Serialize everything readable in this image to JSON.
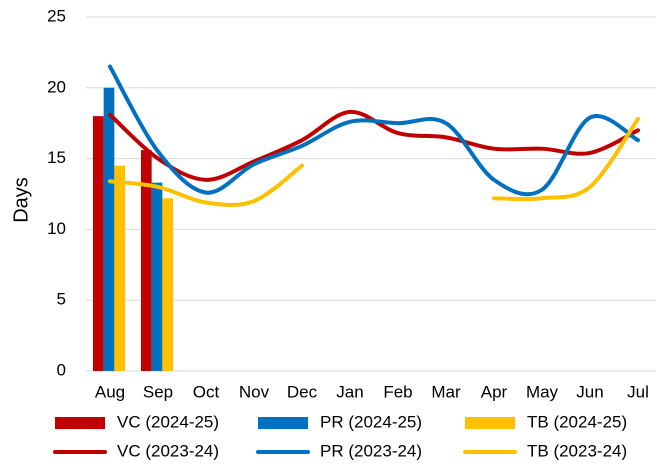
{
  "chart_data": {
    "type": "bar",
    "y_label": "Days",
    "categories": [
      "Aug",
      "Sep",
      "Oct",
      "Nov",
      "Dec",
      "Jan",
      "Feb",
      "Mar",
      "Apr",
      "May",
      "Jun",
      "Jul"
    ],
    "ylim": [
      0,
      25
    ],
    "yticks": [
      0,
      5,
      10,
      15,
      20,
      25
    ],
    "grid": true,
    "legend": "bottom",
    "series": [
      {
        "name": "VC (2024-25)",
        "type": "bar",
        "color": "#c00000",
        "values": [
          18,
          15.6,
          null,
          null,
          null,
          null,
          null,
          null,
          null,
          null,
          null,
          null
        ]
      },
      {
        "name": "PR (2024-25)",
        "type": "bar",
        "color": "#0070c0",
        "values": [
          20,
          13.3,
          null,
          null,
          null,
          null,
          null,
          null,
          null,
          null,
          null,
          null
        ]
      },
      {
        "name": "TB (2024-25)",
        "type": "bar",
        "color": "#ffc000",
        "values": [
          14.5,
          12.2,
          null,
          null,
          null,
          null,
          null,
          null,
          null,
          null,
          null,
          null
        ]
      },
      {
        "name": "VC (2023-24)",
        "type": "line",
        "color": "#c00000",
        "values": [
          18.1,
          15,
          13.5,
          14.8,
          16.3,
          18.3,
          16.8,
          16.5,
          15.7,
          15.7,
          15.4,
          17
        ]
      },
      {
        "name": "PR (2023-24)",
        "type": "line",
        "color": "#0070c0",
        "values": [
          21.5,
          15.5,
          12.6,
          14.6,
          15.9,
          17.6,
          17.5,
          17.5,
          13.5,
          12.8,
          17.9,
          16.3
        ]
      },
      {
        "name": "TB (2023-24)",
        "type": "line",
        "color": "#ffc000",
        "values": [
          13.4,
          13,
          11.9,
          12,
          14.5,
          null,
          null,
          null,
          12.2,
          12.2,
          13,
          17.8
        ]
      }
    ]
  }
}
